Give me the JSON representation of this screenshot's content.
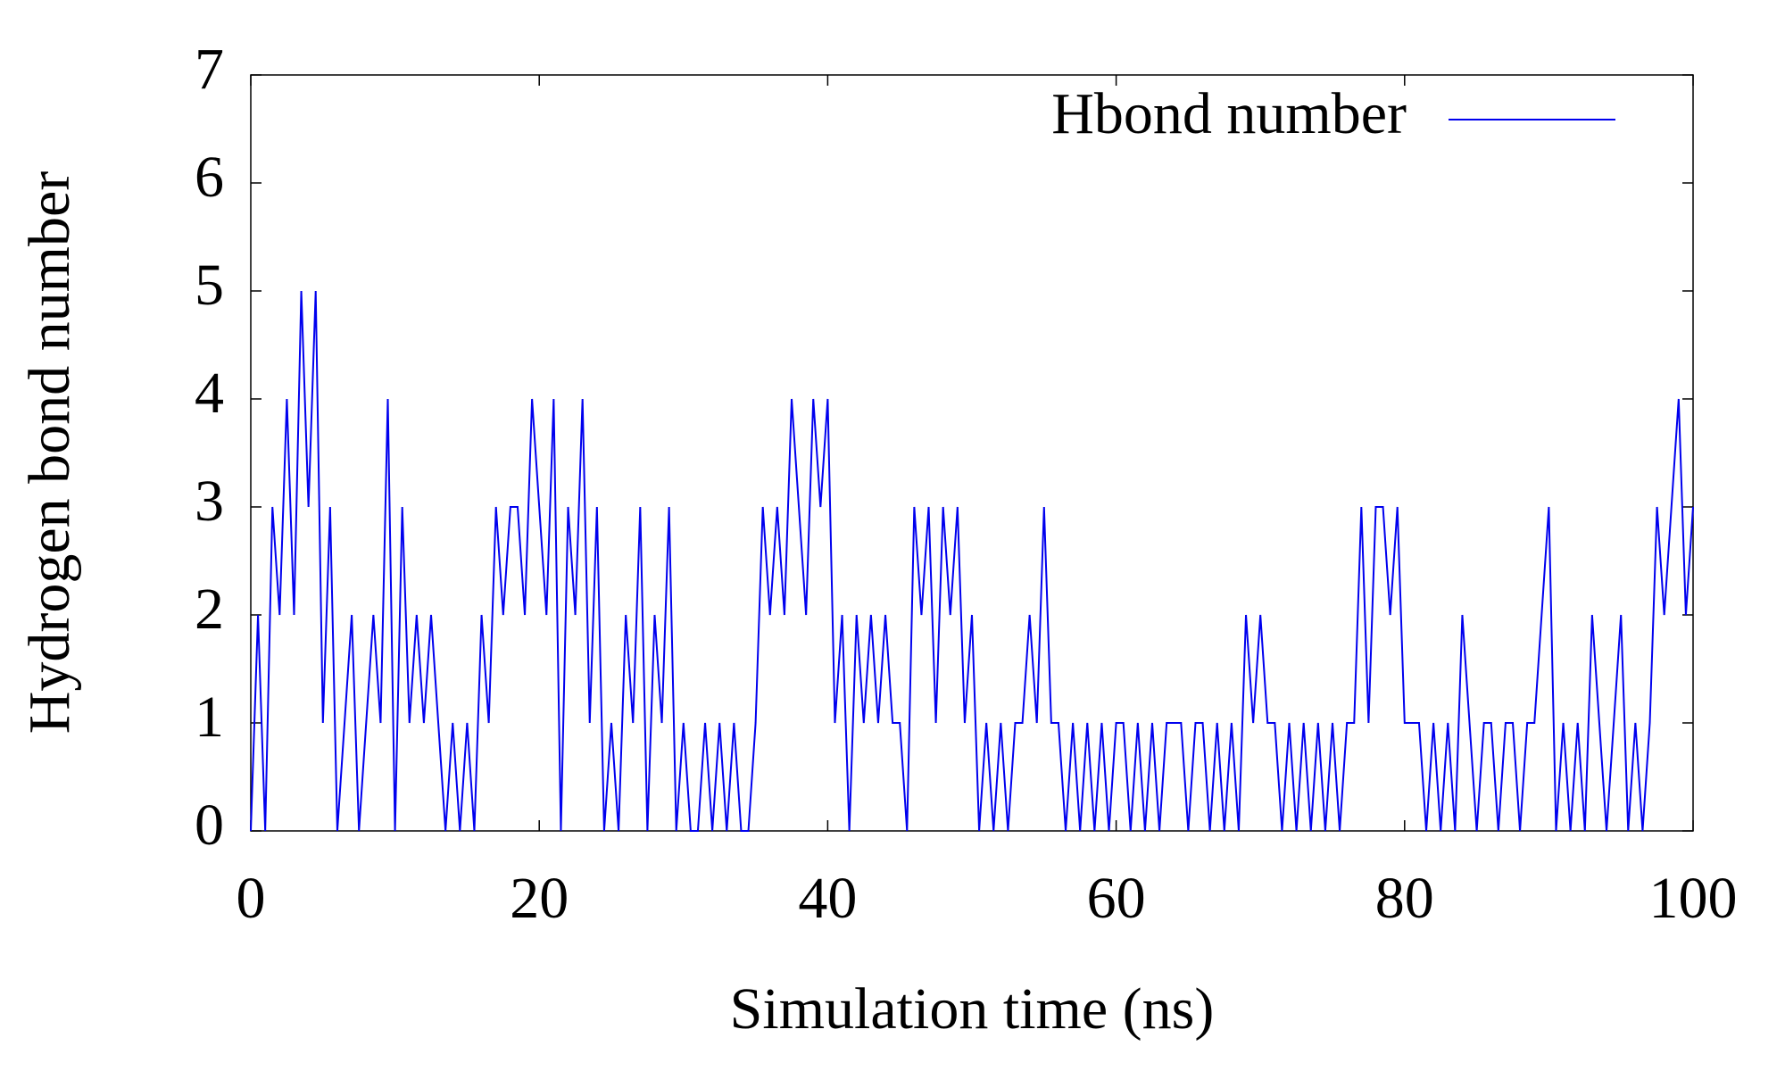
{
  "chart_data": {
    "type": "line",
    "x_label": "Simulation time (ns)",
    "y_label": "Hydrogen bond number",
    "legend": "upper right",
    "xlim": [
      0,
      100
    ],
    "xticks": [
      0,
      20,
      40,
      60,
      80,
      100
    ],
    "ylim": [
      0,
      7
    ],
    "yticks": [
      0,
      1,
      2,
      3,
      4,
      5,
      6,
      7
    ],
    "x": [
      0,
      0.5,
      1,
      1.5,
      2,
      2.5,
      3,
      3.5,
      4,
      4.5,
      5,
      5.5,
      6,
      6.5,
      7,
      7.5,
      8,
      8.5,
      9,
      9.5,
      10,
      10.5,
      11,
      11.5,
      12,
      12.5,
      13,
      13.5,
      14,
      14.5,
      15,
      15.5,
      16,
      16.5,
      17,
      17.5,
      18,
      18.5,
      19,
      19.5,
      20,
      20.5,
      21,
      21.5,
      22,
      22.5,
      23,
      23.5,
      24,
      24.5,
      25,
      25.5,
      26,
      26.5,
      27,
      27.5,
      28,
      28.5,
      29,
      29.5,
      30,
      30.5,
      31,
      31.5,
      32,
      32.5,
      33,
      33.5,
      34,
      34.5,
      35,
      35.5,
      36,
      36.5,
      37,
      37.5,
      38,
      38.5,
      39,
      39.5,
      40,
      40.5,
      41,
      41.5,
      42,
      42.5,
      43,
      43.5,
      44,
      44.5,
      45,
      45.5,
      46,
      46.5,
      47,
      47.5,
      48,
      48.5,
      49,
      49.5,
      50,
      50.5,
      51,
      51.5,
      52,
      52.5,
      53,
      53.5,
      54,
      54.5,
      55,
      55.5,
      56,
      56.5,
      57,
      57.5,
      58,
      58.5,
      59,
      59.5,
      60,
      60.5,
      61,
      61.5,
      62,
      62.5,
      63,
      63.5,
      64,
      64.5,
      65,
      65.5,
      66,
      66.5,
      67,
      67.5,
      68,
      68.5,
      69,
      69.5,
      70,
      70.5,
      71,
      71.5,
      72,
      72.5,
      73,
      73.5,
      74,
      74.5,
      75,
      75.5,
      76,
      76.5,
      77,
      77.5,
      78,
      78.5,
      79,
      79.5,
      80,
      80.5,
      81,
      81.5,
      82,
      82.5,
      83,
      83.5,
      84,
      84.5,
      85,
      85.5,
      86,
      86.5,
      87,
      87.5,
      88,
      88.5,
      89,
      89.5,
      90,
      90.5,
      91,
      91.5,
      92,
      92.5,
      93,
      93.5,
      94,
      94.5,
      95,
      95.5,
      96,
      96.5,
      97,
      97.5,
      98,
      98.5,
      99,
      99.5,
      100
    ],
    "series": [
      {
        "name": "Hbond number",
        "color": "#0000ee",
        "values": [
          0,
          2,
          0,
          3,
          2,
          4,
          2,
          5,
          3,
          5,
          1,
          3,
          0,
          1,
          2,
          0,
          1,
          2,
          1,
          4,
          0,
          3,
          1,
          2,
          1,
          2,
          1,
          0,
          1,
          0,
          1,
          0,
          2,
          1,
          3,
          2,
          3,
          3,
          2,
          4,
          3,
          2,
          4,
          0,
          3,
          2,
          4,
          1,
          3,
          0,
          1,
          0,
          2,
          1,
          3,
          0,
          2,
          1,
          3,
          0,
          1,
          0,
          0,
          1,
          0,
          1,
          0,
          1,
          0,
          0,
          1,
          3,
          2,
          3,
          2,
          4,
          3,
          2,
          4,
          3,
          4,
          1,
          2,
          0,
          2,
          1,
          2,
          1,
          2,
          1,
          1,
          0,
          3,
          2,
          3,
          1,
          3,
          2,
          3,
          1,
          2,
          0,
          1,
          0,
          1,
          0,
          1,
          1,
          2,
          1,
          3,
          1,
          1,
          0,
          1,
          0,
          1,
          0,
          1,
          0,
          1,
          1,
          0,
          1,
          0,
          1,
          0,
          1,
          1,
          1,
          0,
          1,
          1,
          0,
          1,
          0,
          1,
          0,
          2,
          1,
          2,
          1,
          1,
          0,
          1,
          0,
          1,
          0,
          1,
          0,
          1,
          0,
          1,
          1,
          3,
          1,
          3,
          3,
          2,
          3,
          1,
          1,
          1,
          0,
          1,
          0,
          1,
          0,
          2,
          1,
          0,
          1,
          1,
          0,
          1,
          1,
          0,
          1,
          1,
          2,
          3,
          0,
          1,
          0,
          1,
          0,
          2,
          1,
          0,
          1,
          2,
          0,
          1,
          0,
          1,
          3,
          2,
          3,
          4,
          2,
          3
        ]
      }
    ]
  }
}
